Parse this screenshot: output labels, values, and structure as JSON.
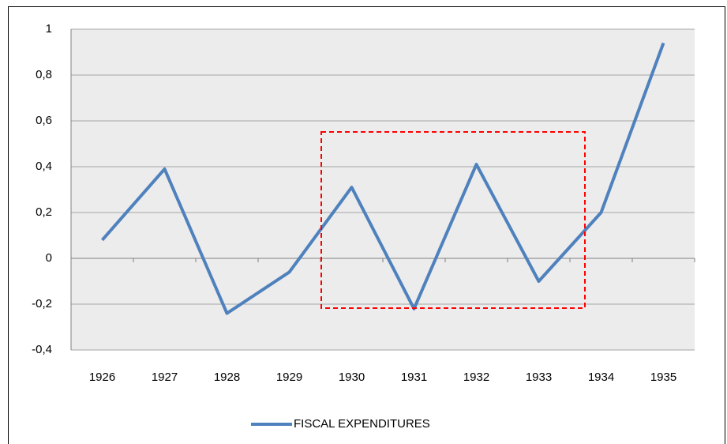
{
  "chart_data": {
    "type": "line",
    "categories": [
      "1926",
      "1927",
      "1928",
      "1929",
      "1930",
      "1931",
      "1932",
      "1933",
      "1934",
      "1935"
    ],
    "series": [
      {
        "name": "FISCAL EXPENDITURES",
        "color": "#4f81bd",
        "values": [
          0.08,
          0.39,
          -0.24,
          -0.06,
          0.31,
          -0.22,
          0.41,
          -0.1,
          0.2,
          0.94
        ]
      }
    ],
    "ylim": [
      -0.4,
      1
    ],
    "yticks": [
      {
        "value": -0.4,
        "label": "-0,4"
      },
      {
        "value": -0.2,
        "label": "-0,2"
      },
      0,
      {
        "value": 0.2,
        "label": "0,2"
      },
      {
        "value": 0.4,
        "label": "0,4"
      },
      {
        "value": 0.6,
        "label": "0,6"
      },
      {
        "value": 0.8,
        "label": "0,8"
      },
      1
    ],
    "grid": true,
    "legend": "bottom"
  }
}
